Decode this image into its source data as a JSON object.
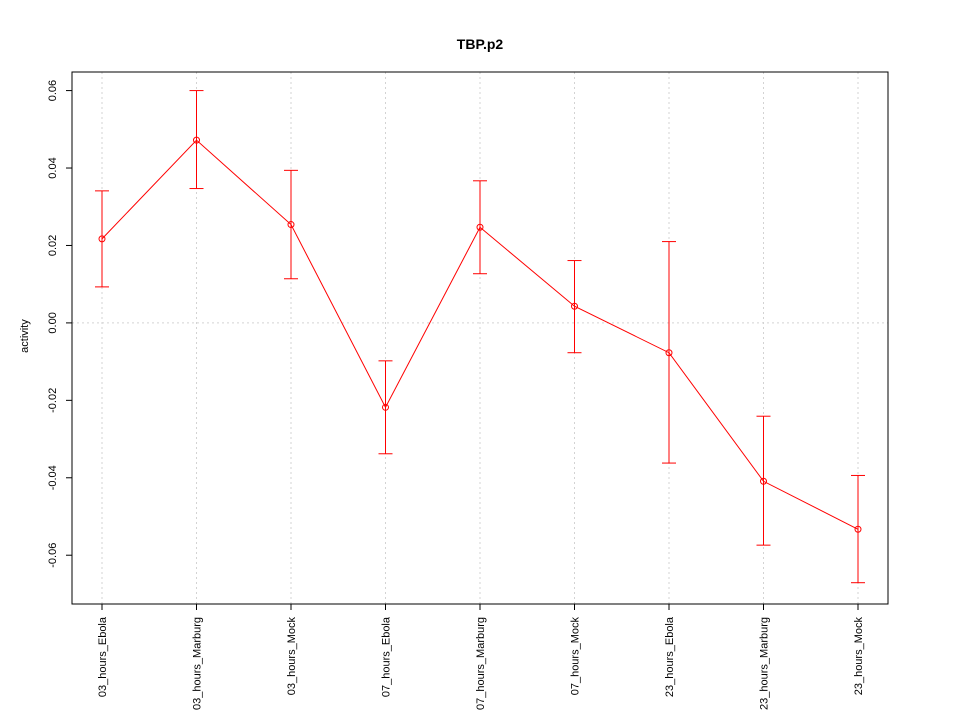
{
  "chart_data": {
    "type": "line",
    "title": "TBP.p2",
    "xlabel": "",
    "ylabel": "activity",
    "categories": [
      "03_hours_Ebola",
      "03_hours_Marburg",
      "03_hours_Mock",
      "07_hours_Ebola",
      "07_hours_Marburg",
      "07_hours_Mock",
      "23_hours_Ebola",
      "23_hours_Marburg",
      "23_hours_Mock"
    ],
    "series": [
      {
        "values": [
          0.0217,
          0.0472,
          0.0254,
          -0.0218,
          0.0247,
          0.0043,
          -0.0077,
          -0.0409,
          -0.0533
        ],
        "error_lower": [
          0.0093,
          0.0347,
          0.0114,
          -0.0338,
          0.0127,
          -0.0077,
          -0.0362,
          -0.0574,
          -0.0671
        ],
        "error_upper": [
          0.0341,
          0.06,
          0.0394,
          -0.0098,
          0.0367,
          0.0161,
          0.021,
          -0.0241,
          -0.0394
        ]
      }
    ],
    "yticks": [
      -0.06,
      -0.04,
      -0.02,
      0.0,
      0.02,
      0.04,
      0.06
    ],
    "ytick_labels": [
      "-0.06",
      "-0.04",
      "-0.02",
      "0.00",
      "0.02",
      "0.04",
      "0.06"
    ],
    "ylim": [
      -0.0726,
      0.0648
    ],
    "grid": true,
    "colors": {
      "series": "#ff0000",
      "grid": "#d3d3d3",
      "axis": "#000000"
    }
  }
}
